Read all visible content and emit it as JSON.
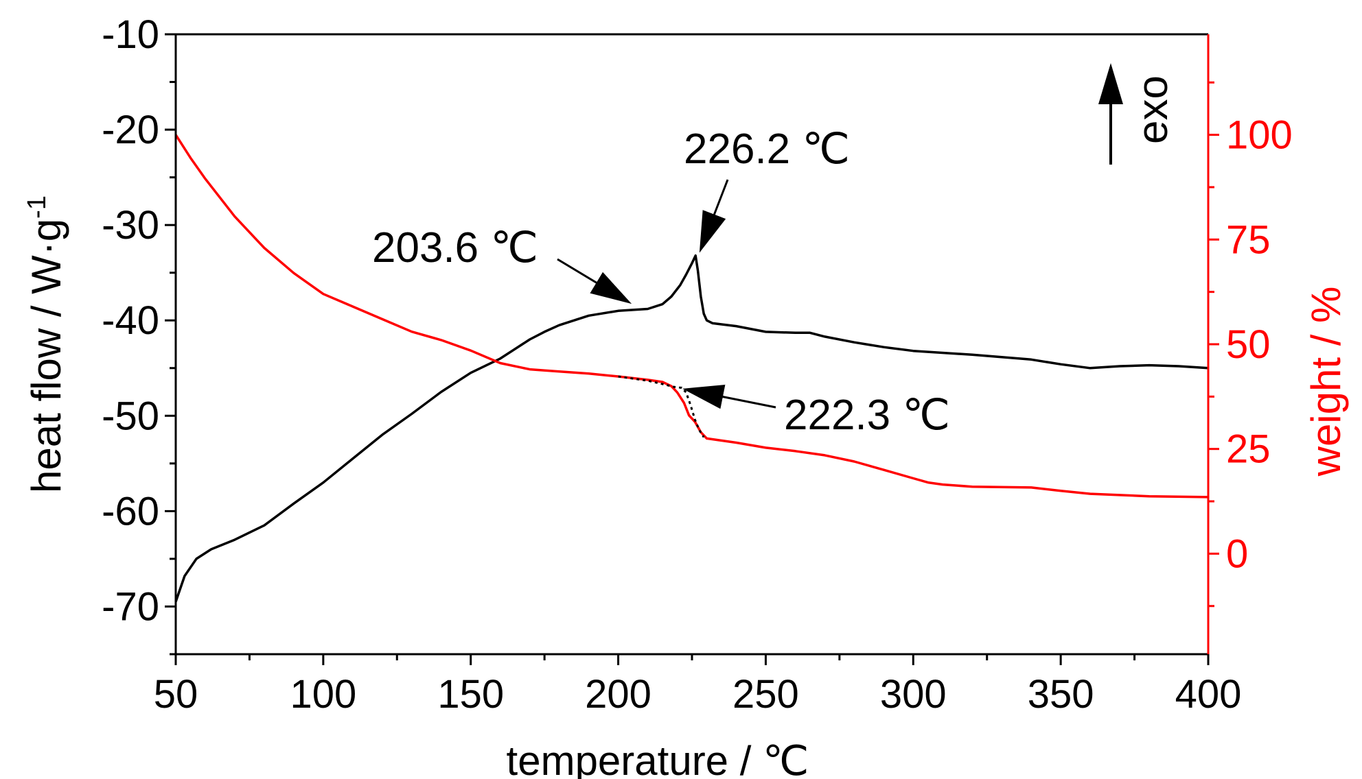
{
  "chart_data": {
    "type": "line",
    "xlabel": "temperature / ℃",
    "ylabel_left": "heat flow / W·g",
    "ylabel_left_sup": "-1",
    "ylabel_right": "weight / %",
    "xlim": [
      50,
      400
    ],
    "ylim_left": [
      -75,
      -10
    ],
    "ylim_right": [
      -24,
      124
    ],
    "x_ticks": [
      50,
      100,
      150,
      200,
      250,
      300,
      350,
      400
    ],
    "y_left_ticks": [
      -10,
      -20,
      -30,
      -40,
      -50,
      -60,
      -70
    ],
    "y_right_ticks": [
      0,
      25,
      50,
      75,
      100
    ],
    "grid": false,
    "legend": "none",
    "colors": {
      "heat_flow": "#000000",
      "weight": "#ff0000",
      "axis_right": "#ff0000"
    },
    "series": [
      {
        "axis": "left",
        "x": [
          50,
          53,
          57,
          62,
          70,
          80,
          90,
          100,
          110,
          120,
          130,
          140,
          150,
          160,
          170,
          175,
          180,
          190,
          200,
          205,
          210,
          215,
          218,
          221,
          223,
          225,
          226.2,
          227,
          228,
          229,
          230,
          232,
          240,
          250,
          260,
          265,
          270,
          280,
          290,
          300,
          320,
          340,
          350,
          360,
          370,
          380,
          390,
          400
        ],
        "y": [
          -69.5,
          -66.8,
          -65.0,
          -64.0,
          -63.0,
          -61.5,
          -59.2,
          -57.0,
          -54.5,
          -52.0,
          -49.8,
          -47.5,
          -45.5,
          -44.0,
          -42.0,
          -41.2,
          -40.5,
          -39.5,
          -39.0,
          -38.9,
          -38.8,
          -38.3,
          -37.5,
          -36.3,
          -35.2,
          -34.0,
          -33.2,
          -34.8,
          -37.5,
          -39.3,
          -40.0,
          -40.3,
          -40.6,
          -41.2,
          -41.3,
          -41.3,
          -41.7,
          -42.3,
          -42.8,
          -43.2,
          -43.6,
          -44.1,
          -44.6,
          -45.0,
          -44.8,
          -44.7,
          -44.8,
          -45.0
        ]
      },
      {
        "axis": "right",
        "x": [
          50,
          55,
          60,
          70,
          80,
          90,
          100,
          110,
          120,
          130,
          140,
          150,
          160,
          170,
          180,
          190,
          200,
          210,
          215,
          218,
          220,
          222.3,
          224,
          226,
          228,
          230,
          240,
          250,
          260,
          270,
          280,
          290,
          300,
          305,
          310,
          320,
          340,
          350,
          360,
          380,
          400
        ],
        "y": [
          100,
          94.5,
          89.5,
          80.5,
          73,
          67,
          62,
          59,
          56,
          53,
          51,
          48.5,
          45.5,
          44,
          43.5,
          43,
          42.3,
          41.5,
          41,
          40,
          38.5,
          36,
          33,
          31.5,
          29,
          27.5,
          26.5,
          25.3,
          24.5,
          23.5,
          22,
          20,
          18,
          17,
          16.5,
          16,
          15.8,
          15,
          14.3,
          13.7,
          13.5
        ]
      },
      {
        "axis": "right",
        "style": "dotted",
        "x": [
          200,
          205,
          210,
          215,
          219,
          221.5,
          223,
          224.5,
          226,
          227.5,
          229
        ],
        "y": [
          42.3,
          41.8,
          41.3,
          40.5,
          39.8,
          39.6,
          38.5,
          35.5,
          32,
          29.5,
          27.8
        ]
      }
    ],
    "annotations": [
      {
        "text": "226.2 ℃"
      },
      {
        "text": "203.6 ℃"
      },
      {
        "text": "222.3 ℃"
      },
      {
        "text": "exo"
      }
    ]
  }
}
